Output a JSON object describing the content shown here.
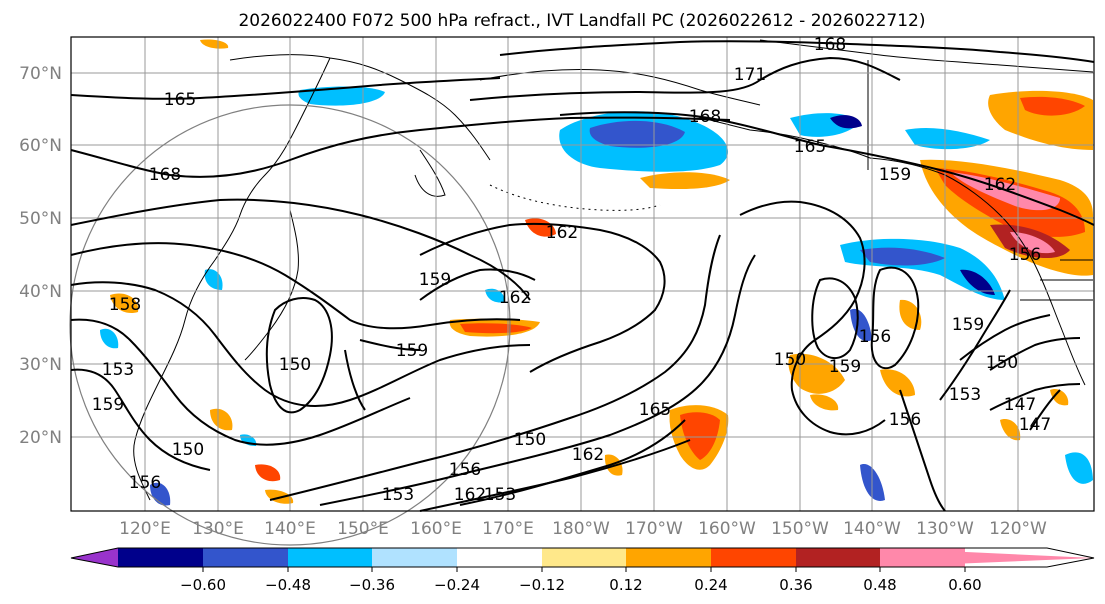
{
  "title": "2026022400 F072 500 hPa refract., IVT Landfall PC (2026022612 - 2026022712)",
  "lat_labels": [
    "70°N",
    "60°N",
    "50°N",
    "40°N",
    "30°N",
    "20°N"
  ],
  "lon_labels": [
    "120°E",
    "130°E",
    "140°E",
    "150°E",
    "160°E",
    "170°E",
    "180°W",
    "170°W",
    "160°W",
    "150°W",
    "140°W",
    "130°W",
    "120°W"
  ],
  "contour_labels": [
    "165",
    "168",
    "168",
    "171",
    "168",
    "165",
    "159",
    "162",
    "156",
    "158",
    "153",
    "159",
    "150",
    "159",
    "150",
    "162",
    "165",
    "150",
    "162",
    "153",
    "156",
    "162",
    "150",
    "159",
    "156",
    "159",
    "150",
    "153",
    "147",
    "147",
    "156",
    "159",
    "153",
    "156",
    "162"
  ],
  "colorbar": {
    "colors": [
      "#9933cc",
      "#00008b",
      "#3355cc",
      "#00bfff",
      "#b0e2ff",
      "#ffffff",
      "#ffe88a",
      "#ffa500",
      "#ff4500",
      "#b22222",
      "#ff88aa"
    ],
    "tick_labels": [
      "−0.60",
      "−0.48",
      "−0.36",
      "−0.24",
      "−0.12",
      "0.12",
      "0.24",
      "0.36",
      "0.48",
      "0.60"
    ]
  }
}
